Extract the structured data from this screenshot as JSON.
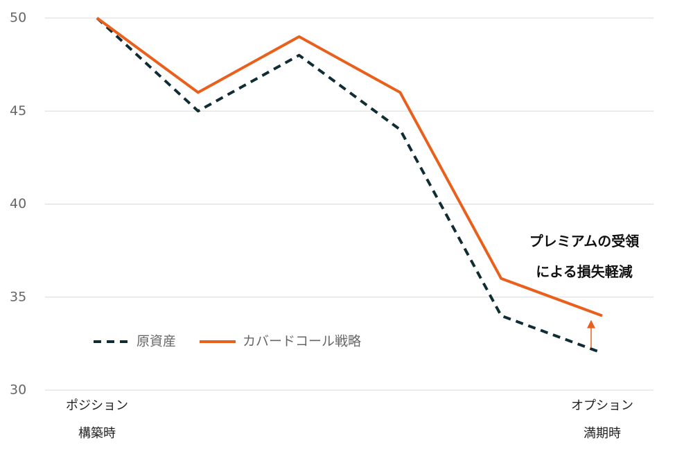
{
  "chart_data": {
    "type": "line",
    "categories": [
      "ポジション\n構築時",
      null,
      null,
      null,
      null,
      "オプション\n満期時"
    ],
    "series": [
      {
        "name": "原資産",
        "color": "#0f2d33",
        "dashed": true,
        "values": [
          50,
          45,
          48,
          44,
          34,
          32
        ]
      },
      {
        "name": "カバードコール戦略",
        "color": "#e8601c",
        "dashed": false,
        "values": [
          50,
          46,
          49,
          46,
          36,
          34
        ]
      }
    ],
    "ylim": [
      30,
      50
    ],
    "yticks": [
      30,
      35,
      40,
      45,
      50
    ],
    "grid": true,
    "annotation": "プレミアムの受領\nによる損失軽減"
  }
}
